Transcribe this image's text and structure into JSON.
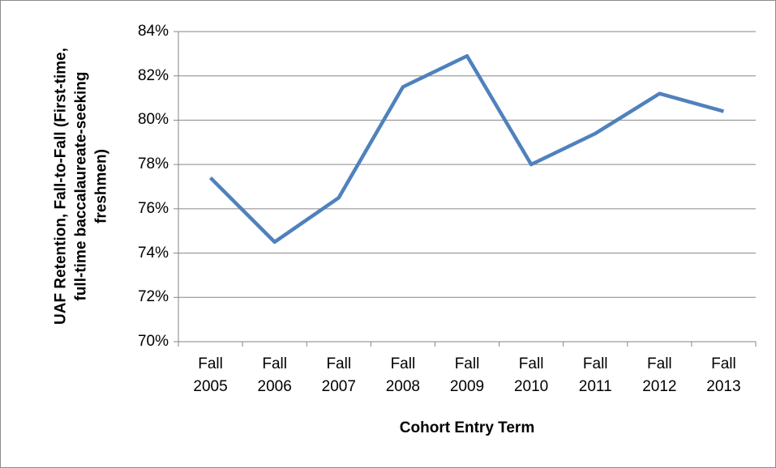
{
  "chart_data": {
    "type": "line",
    "y_label": "UAF Retention, Fall-to-Fall (First-time, full-time baccalaureate-seeking freshmen)",
    "x_label": "Cohort Entry Term",
    "categories": [
      "Fall 2005",
      "Fall 2006",
      "Fall 2007",
      "Fall 2008",
      "Fall 2009",
      "Fall 2010",
      "Fall 2011",
      "Fall 2012",
      "Fall 2013"
    ],
    "values": [
      77.4,
      74.5,
      76.5,
      81.5,
      82.9,
      78.0,
      79.4,
      81.2,
      80.4
    ],
    "color": "#4f81bd",
    "ylim": [
      70,
      84
    ],
    "yticks": [
      {
        "value": 70,
        "label": "70%"
      },
      {
        "value": 72,
        "label": "72%"
      },
      {
        "value": 74,
        "label": "74%"
      },
      {
        "value": 76,
        "label": "76%"
      },
      {
        "value": 78,
        "label": "78%"
      },
      {
        "value": 80,
        "label": "80%"
      },
      {
        "value": 82,
        "label": "82%"
      },
      {
        "value": 84,
        "label": "84%"
      }
    ],
    "grid": true
  }
}
